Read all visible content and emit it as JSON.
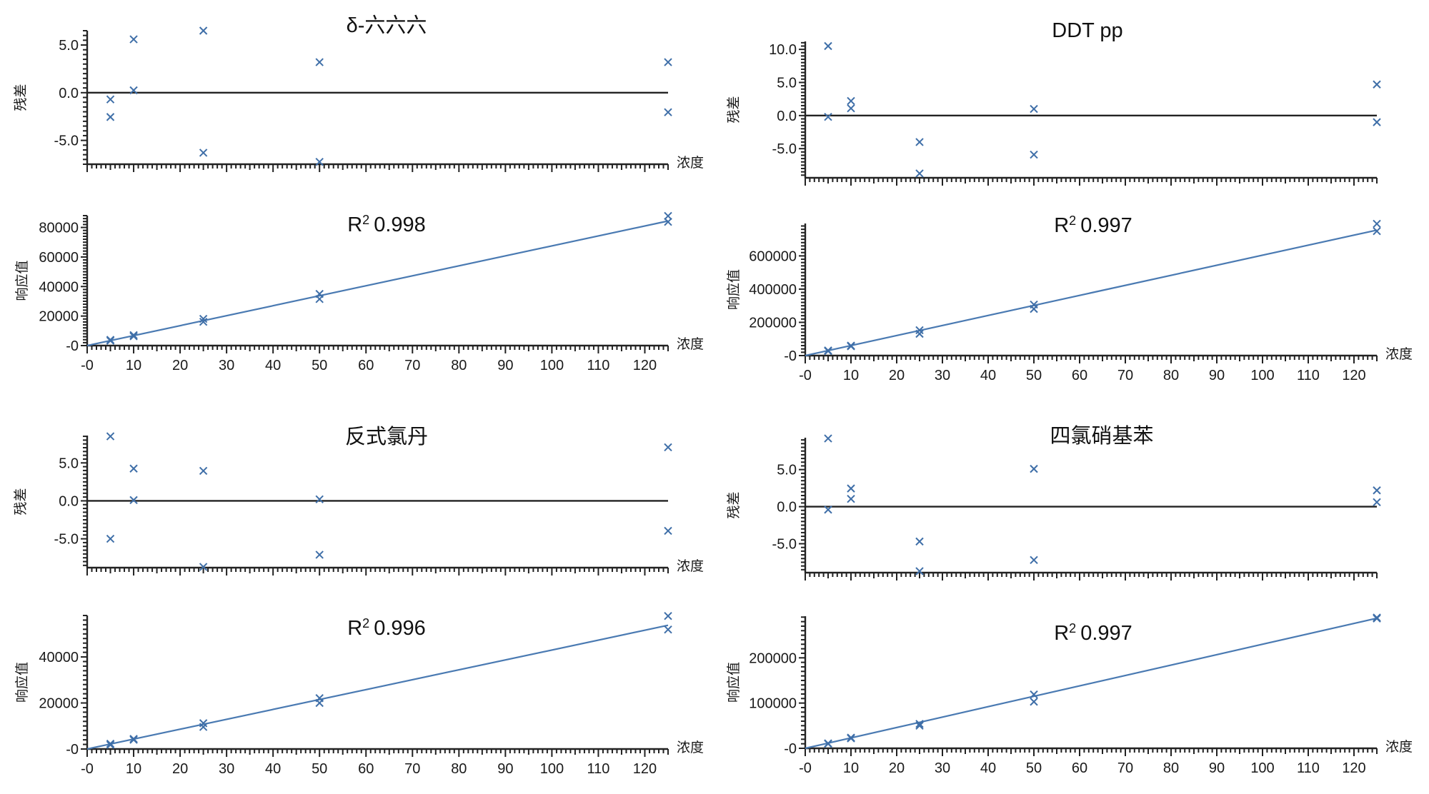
{
  "colors": {
    "marker": "#3f6fa8",
    "fit_line": "#4a7ab2",
    "axis": "#222222"
  },
  "chart_data": [
    {
      "id": "delta-hch-residual",
      "type": "scatter",
      "title": "δ-六六六",
      "xlabel": "浓度",
      "ylabel": "残差",
      "xlim": [
        0,
        125
      ],
      "ylim": [
        -7.5,
        6.5
      ],
      "yticks": [
        5,
        0,
        -5
      ],
      "ytick_labels": [
        "5.0",
        "0.0",
        "-5.0"
      ],
      "zero_line": true,
      "show_xlabel": true,
      "points": [
        [
          5,
          -0.7
        ],
        [
          5,
          -2.55
        ],
        [
          10,
          5.6
        ],
        [
          10,
          0.25
        ],
        [
          25,
          6.5
        ],
        [
          25,
          -6.3
        ],
        [
          50,
          3.2
        ],
        [
          50,
          -7.25
        ],
        [
          125,
          3.2
        ],
        [
          125,
          -2.05
        ]
      ]
    },
    {
      "id": "delta-hch-response",
      "type": "scatter",
      "title": "R2 0.998",
      "r2_prefix": "R",
      "r2_sup": "2",
      "r2_value": "0.998",
      "xlabel": "浓度",
      "ylabel": "响应值",
      "xlim": [
        0,
        125
      ],
      "ylim": [
        0,
        88000
      ],
      "yticks": [
        0,
        20000,
        40000,
        60000,
        80000
      ],
      "ytick_labels": [
        "-0",
        "20000",
        "40000",
        "60000",
        "80000"
      ],
      "xticks": [
        0,
        10,
        20,
        30,
        40,
        50,
        60,
        70,
        80,
        90,
        100,
        110,
        120
      ],
      "xtick_labels": [
        "-0",
        "10",
        "20",
        "30",
        "40",
        "50",
        "60",
        "70",
        "80",
        "90",
        "100",
        "110",
        "120"
      ],
      "fit": {
        "intercept": 0,
        "slope": 675
      },
      "show_xlabel": true,
      "points": [
        [
          5,
          3900
        ],
        [
          5,
          3300
        ],
        [
          10,
          7100
        ],
        [
          10,
          6300
        ],
        [
          25,
          18100
        ],
        [
          25,
          16100
        ],
        [
          50,
          35000
        ],
        [
          50,
          31500
        ],
        [
          125,
          87800
        ],
        [
          125,
          83800
        ]
      ]
    },
    {
      "id": "ddt-pp-residual",
      "type": "scatter",
      "title": "DDT pp",
      "xlabel": "",
      "ylabel": "残差",
      "xlim": [
        0,
        125
      ],
      "ylim": [
        -9.4,
        11.2
      ],
      "yticks": [
        10,
        5,
        0,
        -5
      ],
      "ytick_labels": [
        "10.0",
        "5.0",
        "0.0",
        "-5.0"
      ],
      "zero_line": true,
      "show_xlabel": false,
      "points": [
        [
          5,
          10.5
        ],
        [
          5,
          -0.2
        ],
        [
          10,
          2.2
        ],
        [
          10,
          1.1
        ],
        [
          25,
          -4.0
        ],
        [
          25,
          -8.75
        ],
        [
          50,
          1.0
        ],
        [
          50,
          -5.9
        ],
        [
          125,
          4.7
        ],
        [
          125,
          -1.0
        ]
      ]
    },
    {
      "id": "ddt-pp-response",
      "type": "scatter",
      "title": "R2 0.997",
      "r2_prefix": "R",
      "r2_sup": "2",
      "r2_value": "0.997",
      "xlabel": "浓度",
      "ylabel": "响应值",
      "xlim": [
        0,
        125
      ],
      "ylim": [
        0,
        795000
      ],
      "yticks": [
        0,
        200000,
        400000,
        600000
      ],
      "ytick_labels": [
        "-0",
        "200000",
        "400000",
        "600000"
      ],
      "xticks": [
        0,
        10,
        20,
        30,
        40,
        50,
        60,
        70,
        80,
        90,
        100,
        110,
        120
      ],
      "xtick_labels": [
        "-0",
        "10",
        "20",
        "30",
        "40",
        "50",
        "60",
        "70",
        "80",
        "90",
        "100",
        "110",
        "120"
      ],
      "fit": {
        "intercept": 0,
        "slope": 6040
      },
      "show_xlabel": true,
      "points": [
        [
          5,
          31000
        ],
        [
          5,
          27000
        ],
        [
          10,
          60000
        ],
        [
          10,
          56000
        ],
        [
          25,
          153000
        ],
        [
          25,
          131000
        ],
        [
          50,
          307000
        ],
        [
          50,
          281000
        ],
        [
          125,
          793000
        ],
        [
          125,
          749000
        ]
      ]
    },
    {
      "id": "trans-chlordane-residual",
      "type": "scatter",
      "title": "反式氯丹",
      "xlabel": "浓度",
      "ylabel": "残差",
      "xlim": [
        0,
        125
      ],
      "ylim": [
        -8.8,
        8.6
      ],
      "yticks": [
        5,
        0,
        -5
      ],
      "ytick_labels": [
        "5.0",
        "0.0",
        "-5.0"
      ],
      "zero_line": true,
      "show_xlabel": true,
      "points": [
        [
          5,
          8.5
        ],
        [
          5,
          -5.0
        ],
        [
          10,
          4.25
        ],
        [
          10,
          0.1
        ],
        [
          25,
          3.95
        ],
        [
          25,
          -8.7
        ],
        [
          50,
          0.2
        ],
        [
          50,
          -7.1
        ],
        [
          125,
          7.05
        ],
        [
          125,
          -3.95
        ]
      ]
    },
    {
      "id": "trans-chlordane-response",
      "type": "scatter",
      "title": "R2 0.996",
      "r2_prefix": "R",
      "r2_sup": "2",
      "r2_value": "0.996",
      "xlabel": "浓度",
      "ylabel": "响应值",
      "xlim": [
        0,
        125
      ],
      "ylim": [
        0,
        58000
      ],
      "yticks": [
        0,
        20000,
        40000
      ],
      "ytick_labels": [
        "-0",
        "20000",
        "40000"
      ],
      "xticks": [
        0,
        10,
        20,
        30,
        40,
        50,
        60,
        70,
        80,
        90,
        100,
        110,
        120
      ],
      "xtick_labels": [
        "-0",
        "10",
        "20",
        "30",
        "40",
        "50",
        "60",
        "70",
        "80",
        "90",
        "100",
        "110",
        "120"
      ],
      "fit": {
        "intercept": 0,
        "slope": 430
      },
      "show_xlabel": true,
      "points": [
        [
          5,
          2300
        ],
        [
          5,
          1800
        ],
        [
          10,
          4400
        ],
        [
          10,
          4000
        ],
        [
          25,
          11200
        ],
        [
          25,
          9600
        ],
        [
          50,
          22100
        ],
        [
          50,
          20000
        ],
        [
          125,
          57800
        ],
        [
          125,
          51900
        ]
      ]
    },
    {
      "id": "tecnazene-residual",
      "type": "scatter",
      "title": "四氯硝基苯",
      "xlabel": "",
      "ylabel": "残差",
      "xlim": [
        0,
        125
      ],
      "ylim": [
        -8.9,
        9.3
      ],
      "yticks": [
        5,
        0,
        -5
      ],
      "ytick_labels": [
        "5.0",
        "0.0",
        "-5.0"
      ],
      "zero_line": true,
      "show_xlabel": false,
      "points": [
        [
          5,
          9.2
        ],
        [
          5,
          -0.4
        ],
        [
          10,
          2.45
        ],
        [
          10,
          1.05
        ],
        [
          25,
          -4.7
        ],
        [
          25,
          -8.7
        ],
        [
          50,
          5.1
        ],
        [
          50,
          -7.2
        ],
        [
          125,
          2.2
        ],
        [
          125,
          0.6
        ]
      ]
    },
    {
      "id": "tecnazene-response",
      "type": "scatter",
      "title": "R2 0.997",
      "r2_prefix": "R",
      "r2_sup": "2",
      "r2_value": "0.997",
      "xlabel": "浓度",
      "ylabel": "响应值",
      "xlim": [
        0,
        125
      ],
      "ylim": [
        0,
        292000
      ],
      "yticks": [
        0,
        100000,
        200000
      ],
      "ytick_labels": [
        "-0",
        "100000",
        "200000"
      ],
      "xticks": [
        0,
        10,
        20,
        30,
        40,
        50,
        60,
        70,
        80,
        90,
        100,
        110,
        120
      ],
      "xtick_labels": [
        "-0",
        "10",
        "20",
        "30",
        "40",
        "50",
        "60",
        "70",
        "80",
        "90",
        "100",
        "110",
        "120"
      ],
      "fit": {
        "intercept": 0,
        "slope": 2300
      },
      "show_xlabel": true,
      "points": [
        [
          5,
          11000
        ],
        [
          5,
          10000
        ],
        [
          10,
          23500
        ],
        [
          10,
          22000
        ],
        [
          25,
          54000
        ],
        [
          25,
          50000
        ],
        [
          50,
          119000
        ],
        [
          50,
          103000
        ],
        [
          125,
          289000
        ],
        [
          125,
          287000
        ]
      ]
    }
  ]
}
